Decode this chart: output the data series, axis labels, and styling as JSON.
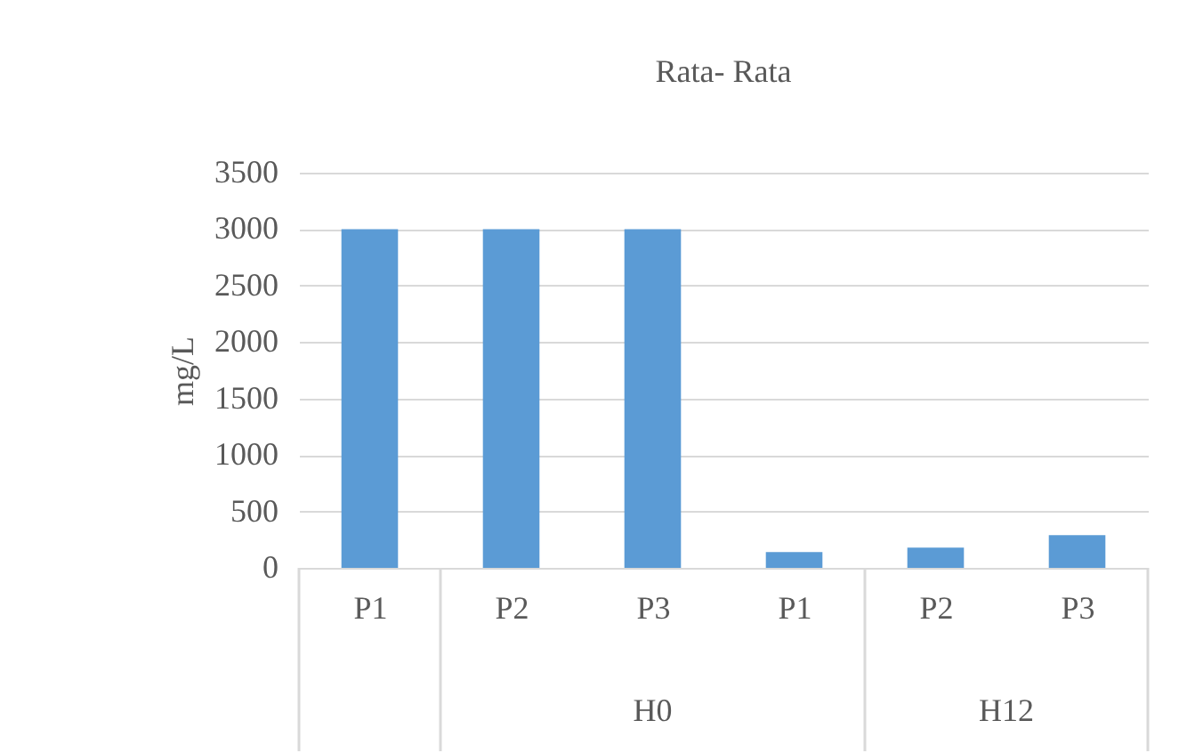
{
  "chart_data": {
    "type": "bar",
    "title": "Rata- Rata",
    "ylabel": "mg/L",
    "categories": [
      "P1",
      "P2",
      "P3",
      "P1",
      "P2",
      "P3"
    ],
    "values": [
      3000,
      3000,
      3000,
      140,
      180,
      290
    ],
    "color": "#5b9bd5",
    "ylim": [
      0,
      3500
    ],
    "yticks": [
      0,
      500,
      1000,
      1500,
      2000,
      2500,
      3000,
      3500
    ],
    "grid": "y",
    "annotations": [
      "H0",
      "H12"
    ]
  }
}
